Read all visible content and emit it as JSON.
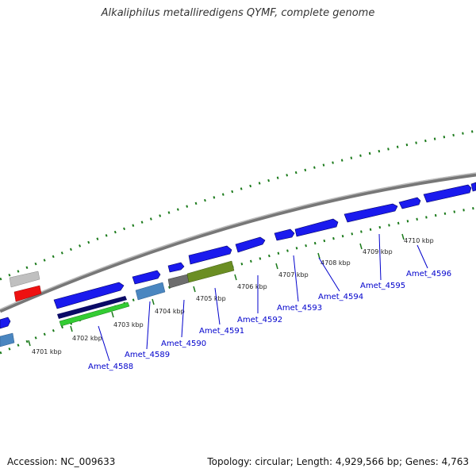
{
  "title": "Alkaliphilus metalliredigens QYMF, complete genome",
  "footer": {
    "accession": "Accession: NC_009633",
    "summary": "Topology: circular; Length: 4,929,566 bp; Genes: 4,763"
  },
  "scale_labels": [
    "4701 kbp",
    "4702 kbp",
    "4703 kbp",
    "4704 kbp",
    "4705 kbp",
    "4706 kbp",
    "4707 kbp",
    "4708 kbp",
    "4709 kbp",
    "4710 kbp"
  ],
  "gene_labels": [
    "Amet_4588",
    "Amet_4589",
    "Amet_4590",
    "Amet_4591",
    "Amet_4592",
    "Amet_4593",
    "Amet_4594",
    "Amet_4595",
    "Amet_4596"
  ],
  "colors": {
    "backbone": "#808080",
    "cds_blue": "#1a1aee",
    "cds_dark_navy": "#0a0a66",
    "cds_green": "#33cc33",
    "cds_steel": "#4a86c0",
    "cds_grey": "#6e6e6e",
    "cds_olive": "#6b8e23",
    "cds_red": "#ee1111",
    "cds_light_grey": "#c0c0c0",
    "tick_green": "#1a7a1a",
    "label_blue": "#0000cc"
  }
}
